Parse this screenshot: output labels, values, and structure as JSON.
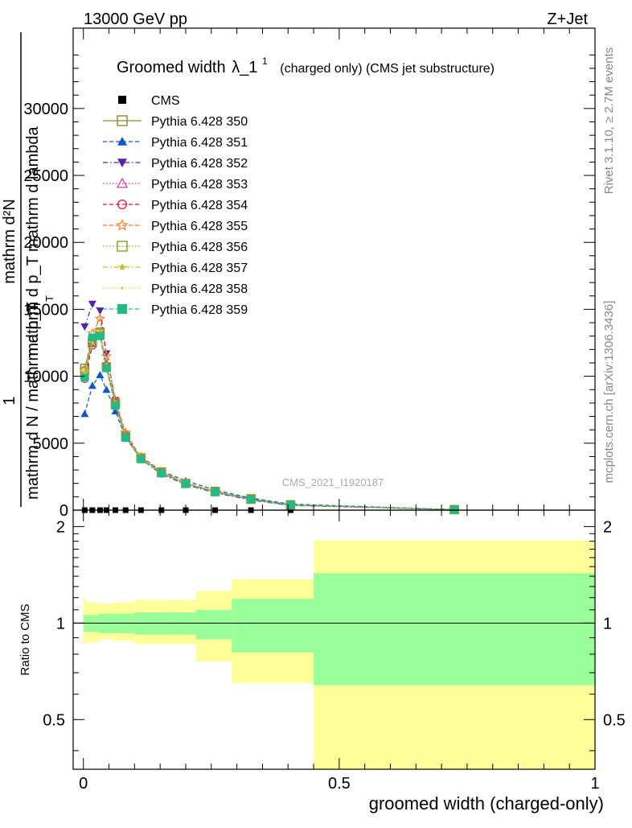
{
  "header": {
    "left": "13000 GeV pp",
    "right": "Z+Jet"
  },
  "side_labels": {
    "rivet": "Rivet 3.1.10, ≥ 2.7M events",
    "mcplots": "mcplots.cern.ch [arXiv:1306.3436]"
  },
  "watermark": "CMS_2021_I1920187",
  "title": {
    "main": "Groomed width",
    "symbol": "λ_1",
    "superscript": "1",
    "note": "(charged only) (CMS jet substructure)"
  },
  "ylabel": {
    "top": "mathrm d²N",
    "bottom": "mathrm d p_T mathrm d lambda",
    "numerator": "1",
    "denominator": "mathrm d N / mathrm d p_T",
    "sub_T": "T"
  },
  "ratio_ylabel": "Ratio to CMS",
  "xlabel": "groomed width (charged-only)",
  "chart_data": [
    {
      "type": "line",
      "panel": "main",
      "xlim": [
        -0.02,
        1.0
      ],
      "ylim": [
        0,
        36000
      ],
      "yticks": [
        0,
        5000,
        10000,
        15000,
        20000,
        25000,
        30000
      ],
      "ytick_labels": [
        "0",
        "5000",
        "10000",
        "15000",
        "20000",
        "25000",
        "30000"
      ],
      "legend_position": "top-left",
      "x": [
        0.0025,
        0.0175,
        0.0325,
        0.045,
        0.0625,
        0.0825,
        0.1125,
        0.1525,
        0.2,
        0.2575,
        0.3275,
        0.405,
        0.725
      ],
      "series": [
        {
          "name": "CMS",
          "color": "#000000",
          "marker": "square-filled",
          "line": "none",
          "values": [
            0,
            0,
            0,
            0,
            0,
            0,
            0,
            0,
            0,
            0,
            0,
            0,
            0
          ]
        },
        {
          "name": "Pythia 6.428 350",
          "color": "#8a8a2a",
          "marker": "square-open",
          "line": "solid",
          "values": [
            10600,
            12600,
            13300,
            10700,
            8000,
            5500,
            3900,
            2850,
            2000,
            1400,
            850,
            400,
            40
          ]
        },
        {
          "name": "Pythia 6.428 351",
          "color": "#1155cc",
          "marker": "triangle-up-filled",
          "line": "dashed",
          "values": [
            7200,
            9300,
            10100,
            9000,
            7400,
            5400,
            4000,
            2900,
            2200,
            1500,
            900,
            450,
            50
          ]
        },
        {
          "name": "Pythia 6.428 352",
          "color": "#5522aa",
          "marker": "triangle-down-filled",
          "line": "dashdot",
          "values": [
            13700,
            15400,
            14900,
            11700,
            8200,
            5500,
            3800,
            2700,
            1900,
            1300,
            750,
            350,
            35
          ]
        },
        {
          "name": "Pythia 6.428 353",
          "color": "#cc3399",
          "marker": "triangle-up-open",
          "line": "dotted",
          "values": [
            10100,
            12500,
            13200,
            10900,
            8000,
            5600,
            3900,
            2800,
            2000,
            1350,
            800,
            380,
            40
          ]
        },
        {
          "name": "Pythia 6.428 354",
          "color": "#dd1133",
          "marker": "circle-open",
          "line": "dashed",
          "values": [
            9800,
            12300,
            13100,
            10800,
            8000,
            5600,
            3900,
            2800,
            2000,
            1350,
            800,
            380,
            40
          ]
        },
        {
          "name": "Pythia 6.428 355",
          "color": "#ff7722",
          "marker": "star-open",
          "line": "dashed",
          "values": [
            10500,
            13200,
            14300,
            11500,
            8200,
            5800,
            3950,
            2850,
            2050,
            1400,
            820,
            390,
            42
          ]
        },
        {
          "name": "Pythia 6.428 356",
          "color": "#88a022",
          "marker": "square-open",
          "line": "dotted",
          "values": [
            10400,
            12500,
            13200,
            10700,
            7900,
            5500,
            3900,
            2800,
            2000,
            1380,
            810,
            385,
            40
          ]
        },
        {
          "name": "Pythia 6.428 357",
          "color": "#ccbb22",
          "marker": "star-small",
          "line": "dashdot",
          "values": [
            10300,
            12600,
            13300,
            10800,
            8000,
            5500,
            3900,
            2800,
            2000,
            1380,
            810,
            385,
            40
          ]
        },
        {
          "name": "Pythia 6.428 358",
          "color": "#ccdd44",
          "marker": "dot",
          "line": "dotted",
          "values": [
            10200,
            12500,
            13200,
            10800,
            8000,
            5500,
            3900,
            2800,
            2000,
            1380,
            810,
            385,
            40
          ]
        },
        {
          "name": "Pythia 6.428 359",
          "color": "#22bb88",
          "marker": "square-filled",
          "line": "dashed",
          "values": [
            9900,
            12900,
            13000,
            10600,
            7800,
            5400,
            3800,
            2750,
            1950,
            1350,
            800,
            380,
            40
          ]
        }
      ]
    },
    {
      "type": "area",
      "panel": "ratio",
      "xlim": [
        -0.02,
        1.0
      ],
      "ylim": [
        0.35,
        2.25
      ],
      "yticks": [
        0.5,
        1,
        2
      ],
      "ytick_labels": [
        "0.5",
        "1",
        "2"
      ],
      "xticks": [
        0,
        0.5,
        1
      ],
      "xtick_labels": [
        "0",
        "0.5",
        "1"
      ],
      "reference_line": 1,
      "bins": [
        {
          "x0": 0.0,
          "x1": 0.005,
          "inner": [
            0.94,
            1.06
          ],
          "outer": [
            0.86,
            1.19
          ]
        },
        {
          "x0": 0.005,
          "x1": 0.03,
          "inner": [
            0.94,
            1.06
          ],
          "outer": [
            0.87,
            1.16
          ]
        },
        {
          "x0": 0.03,
          "x1": 0.06,
          "inner": [
            0.93,
            1.07
          ],
          "outer": [
            0.89,
            1.15
          ]
        },
        {
          "x0": 0.06,
          "x1": 0.1,
          "inner": [
            0.93,
            1.07
          ],
          "outer": [
            0.88,
            1.16
          ]
        },
        {
          "x0": 0.1,
          "x1": 0.17,
          "inner": [
            0.92,
            1.08
          ],
          "outer": [
            0.86,
            1.18
          ]
        },
        {
          "x0": 0.17,
          "x1": 0.22,
          "inner": [
            0.92,
            1.08
          ],
          "outer": [
            0.86,
            1.18
          ]
        },
        {
          "x0": 0.22,
          "x1": 0.29,
          "inner": [
            0.89,
            1.1
          ],
          "outer": [
            0.76,
            1.26
          ]
        },
        {
          "x0": 0.29,
          "x1": 0.45,
          "inner": [
            0.81,
            1.19
          ],
          "outer": [
            0.65,
            1.37
          ]
        },
        {
          "x0": 0.45,
          "x1": 1.0,
          "inner": [
            0.64,
            1.43
          ],
          "outer": [
            0.35,
            1.81
          ]
        }
      ],
      "inner_color": "#99ff99",
      "outer_color": "#ffff99"
    }
  ]
}
